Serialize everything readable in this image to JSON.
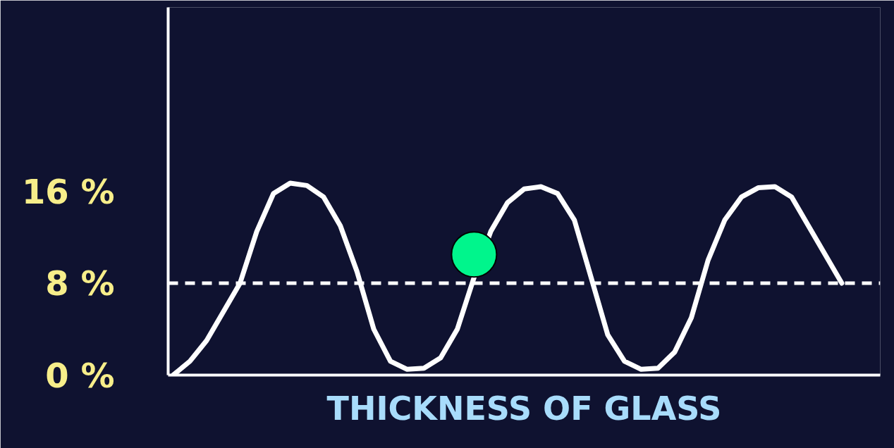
{
  "chart_data": {
    "type": "line",
    "xlabel": "THICKNESS OF GLASS",
    "categories": [
      null,
      null,
      null,
      null,
      null,
      null,
      null,
      null,
      null,
      null,
      null,
      null,
      null,
      null,
      null,
      null,
      null,
      null,
      null,
      null,
      null,
      null,
      null,
      null,
      null,
      null,
      null,
      null,
      null,
      null,
      null,
      null,
      null,
      null,
      null,
      null,
      null,
      null,
      null,
      null,
      null
    ],
    "series": [
      {
        "color": "#ffffff",
        "values": [
          0,
          1.2,
          3,
          5.5,
          8,
          12.5,
          15.8,
          16.7,
          16.5,
          15.5,
          13,
          9,
          4,
          1.2,
          0.5,
          0.6,
          1.5,
          4,
          8.5,
          12.5,
          15,
          16.2,
          16.4,
          15.8,
          13.5,
          8.5,
          3.5,
          1.2,
          0.5,
          0.6,
          2,
          5,
          10,
          13.5,
          15.5,
          16.3,
          16.4,
          15.5,
          13,
          10.5,
          8
        ]
      },
      {
        "type": "scatter",
        "color": "#00f58c",
        "values": [
          null,
          null,
          null,
          null,
          null,
          null,
          null,
          null,
          null,
          null,
          null,
          null,
          null,
          null,
          null,
          null,
          null,
          null,
          10.5,
          null,
          null,
          null,
          null,
          null,
          null,
          null,
          null,
          null,
          null,
          null,
          null,
          null,
          null,
          null,
          null,
          null,
          null,
          null,
          null,
          null,
          null
        ]
      }
    ],
    "ylim": [
      0,
      32
    ],
    "yticks": [
      {
        "value": 0,
        "label": "0 %"
      },
      {
        "value": 8,
        "label": "8 %"
      },
      {
        "value": 16,
        "label": "16 %"
      }
    ],
    "ref_lines": [
      {
        "axis": "y",
        "value": 8,
        "color": "#ffffff",
        "line_style": "dashed"
      }
    ],
    "tick_labels": "y",
    "grid": false,
    "line_style": "solid"
  }
}
